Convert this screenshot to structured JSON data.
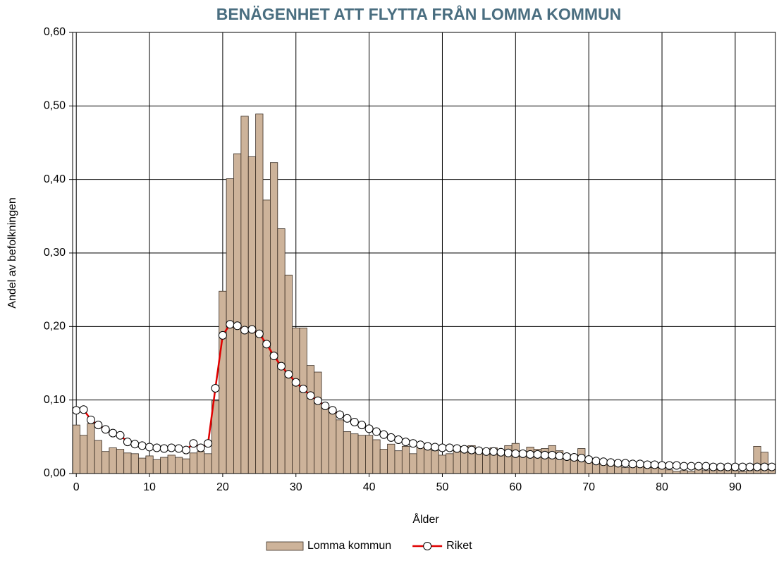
{
  "chart_data": {
    "type": "bar_line",
    "title": "BENÄGENHET ATT FLYTTA FRÅN LOMMA KOMMUN",
    "xlabel": "Ålder",
    "ylabel": "Andel av befolkningen",
    "x": [
      0,
      1,
      2,
      3,
      4,
      5,
      6,
      7,
      8,
      9,
      10,
      11,
      12,
      13,
      14,
      15,
      16,
      17,
      18,
      19,
      20,
      21,
      22,
      23,
      24,
      25,
      26,
      27,
      28,
      29,
      30,
      31,
      32,
      33,
      34,
      35,
      36,
      37,
      38,
      39,
      40,
      41,
      42,
      43,
      44,
      45,
      46,
      47,
      48,
      49,
      50,
      51,
      52,
      53,
      54,
      55,
      56,
      57,
      58,
      59,
      60,
      61,
      62,
      63,
      64,
      65,
      66,
      67,
      68,
      69,
      70,
      71,
      72,
      73,
      74,
      75,
      76,
      77,
      78,
      79,
      80,
      81,
      82,
      83,
      84,
      85,
      86,
      87,
      88,
      89,
      90,
      91,
      92,
      93,
      94,
      95
    ],
    "series": [
      {
        "name": "Lomma kommun",
        "type": "bar",
        "color": "#cdb39a",
        "values": [
          0.066,
          0.052,
          0.068,
          0.045,
          0.03,
          0.035,
          0.033,
          0.028,
          0.027,
          0.021,
          0.024,
          0.019,
          0.022,
          0.025,
          0.022,
          0.02,
          0.028,
          0.03,
          0.027,
          0.099,
          0.248,
          0.401,
          0.435,
          0.486,
          0.431,
          0.489,
          0.372,
          0.423,
          0.333,
          0.27,
          0.198,
          0.198,
          0.147,
          0.138,
          0.093,
          0.088,
          0.073,
          0.057,
          0.054,
          0.052,
          0.052,
          0.046,
          0.033,
          0.04,
          0.031,
          0.037,
          0.027,
          0.036,
          0.035,
          0.031,
          0.025,
          0.027,
          0.034,
          0.037,
          0.038,
          0.03,
          0.031,
          0.035,
          0.031,
          0.038,
          0.041,
          0.026,
          0.036,
          0.033,
          0.034,
          0.038,
          0.031,
          0.026,
          0.024,
          0.034,
          0.019,
          0.016,
          0.017,
          0.013,
          0.012,
          0.008,
          0.01,
          0.012,
          0.008,
          0.008,
          0.008,
          0.005,
          0.003,
          0.004,
          0.003,
          0.008,
          0.004,
          0.007,
          0.005,
          0.006,
          0.004,
          0.003,
          0.004,
          0.037,
          0.029,
          0.008
        ]
      },
      {
        "name": "Riket",
        "type": "line",
        "color": "#e00000",
        "values": [
          0.086,
          0.087,
          0.073,
          0.066,
          0.06,
          0.055,
          0.052,
          0.043,
          0.04,
          0.038,
          0.036,
          0.035,
          0.034,
          0.035,
          0.034,
          0.032,
          0.041,
          0.035,
          0.041,
          0.116,
          0.188,
          0.203,
          0.201,
          0.195,
          0.196,
          0.19,
          0.176,
          0.16,
          0.146,
          0.135,
          0.124,
          0.115,
          0.106,
          0.099,
          0.092,
          0.086,
          0.08,
          0.075,
          0.07,
          0.066,
          0.061,
          0.057,
          0.053,
          0.049,
          0.046,
          0.043,
          0.041,
          0.039,
          0.037,
          0.036,
          0.035,
          0.035,
          0.034,
          0.033,
          0.032,
          0.031,
          0.03,
          0.03,
          0.029,
          0.028,
          0.027,
          0.027,
          0.026,
          0.026,
          0.025,
          0.025,
          0.024,
          0.023,
          0.022,
          0.021,
          0.019,
          0.017,
          0.016,
          0.015,
          0.014,
          0.014,
          0.013,
          0.013,
          0.012,
          0.012,
          0.011,
          0.011,
          0.011,
          0.01,
          0.01,
          0.01,
          0.01,
          0.009,
          0.009,
          0.009,
          0.009,
          0.009,
          0.009,
          0.009,
          0.009,
          0.009
        ]
      }
    ],
    "xlim": [
      -0.5,
      95.5
    ],
    "xticks": [
      0,
      10,
      20,
      30,
      40,
      50,
      60,
      70,
      80,
      90
    ],
    "ylim": [
      0,
      0.6
    ],
    "yticks": [
      {
        "value": 0,
        "label": "0,00"
      },
      {
        "value": 0.1,
        "label": "0,10"
      },
      {
        "value": 0.2,
        "label": "0,20"
      },
      {
        "value": 0.3,
        "label": "0,30"
      },
      {
        "value": 0.4,
        "label": "0,40"
      },
      {
        "value": 0.5,
        "label": "0,50"
      },
      {
        "value": 0.6,
        "label": "0,60"
      }
    ],
    "grid": true,
    "legend": "bottom"
  }
}
